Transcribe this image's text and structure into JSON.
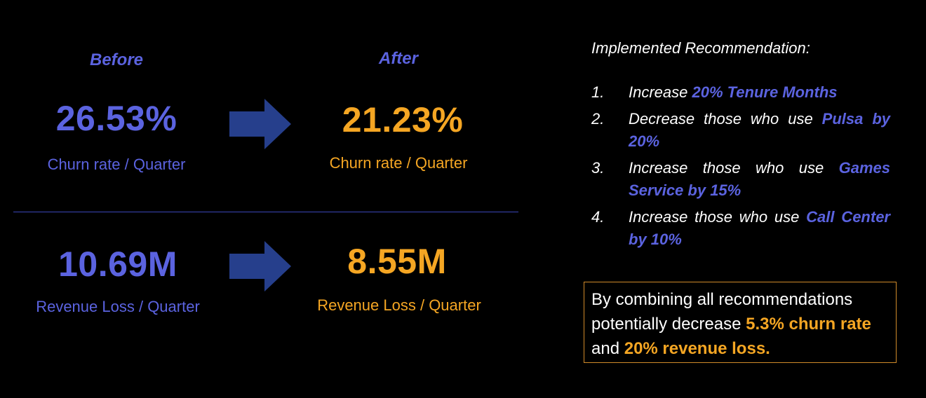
{
  "before": {
    "heading": "Before",
    "churn_value": "26.53%",
    "churn_caption": "Churn rate / Quarter",
    "loss_value": "10.69M",
    "loss_caption": "Revenue Loss / Quarter"
  },
  "after": {
    "heading": "After",
    "churn_value": "21.23%",
    "churn_caption": "Churn rate / Quarter",
    "loss_value": "8.55M",
    "loss_caption": "Revenue Loss / Quarter"
  },
  "recommendations": {
    "title": "Implemented Recommendation:",
    "items": [
      {
        "num": "1.",
        "text": "Increase ",
        "highlight": "20% Tenure Months"
      },
      {
        "num": "2.",
        "text": "Decrease those who use ",
        "highlight": "Pulsa by 20%"
      },
      {
        "num": "3.",
        "text": "Increase those who use ",
        "highlight": "Games Service by 15%"
      },
      {
        "num": "4.",
        "text": "Increase those who use ",
        "highlight": "Call Center by 10%"
      }
    ]
  },
  "summary": {
    "text_1": "By combining all recommendations potentially decrease ",
    "highlight_1": "5.3% churn rate",
    "text_2": " and ",
    "highlight_2": "20% revenue loss."
  },
  "colors": {
    "before_accent": "#5b63e0",
    "after_accent": "#f5a623",
    "arrow": "#263f8c",
    "divider": "#3a46b8",
    "summary_border": "#d08a2a",
    "background": "#000000"
  },
  "icons": {
    "arrow_1": "right-arrow-icon",
    "arrow_2": "right-arrow-icon"
  }
}
